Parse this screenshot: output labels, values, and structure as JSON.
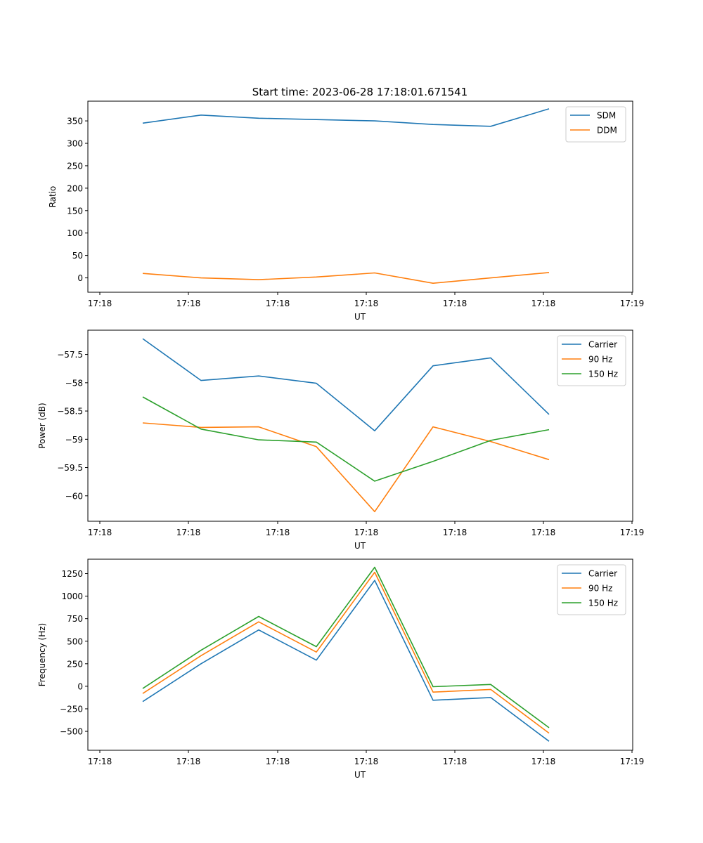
{
  "figure": {
    "title": "Start time: 2023-06-28 17:18:01.671541"
  },
  "chart_data": [
    {
      "type": "line",
      "title": "Start time: 2023-06-28 17:18:01.671541",
      "xlabel": "UT",
      "ylabel": "Ratio",
      "x_tick_labels": [
        "17:18",
        "17:18",
        "17:18",
        "17:18",
        "17:18",
        "17:18",
        "17:19"
      ],
      "y_ticks": [
        0,
        50,
        100,
        150,
        200,
        250,
        300,
        350
      ],
      "ylim": [
        -32,
        394
      ],
      "legend_position": "top-right",
      "grid": false,
      "series": [
        {
          "name": "SDM",
          "color": "#1f77b4",
          "values": [
            345,
            363,
            356,
            353,
            350,
            342,
            338,
            377
          ]
        },
        {
          "name": "DDM",
          "color": "#ff7f0e",
          "values": [
            10,
            0,
            -4,
            2,
            11,
            -12,
            0,
            12
          ]
        }
      ]
    },
    {
      "type": "line",
      "title": "",
      "xlabel": "UT",
      "ylabel": "Power (dB)",
      "x_tick_labels": [
        "17:18",
        "17:18",
        "17:18",
        "17:18",
        "17:18",
        "17:18",
        "17:19"
      ],
      "y_ticks": [
        -57.5,
        -58.0,
        -58.5,
        -59.0,
        -59.5,
        -60.0
      ],
      "ylim": [
        -60.45,
        -57.07
      ],
      "legend_position": "top-right",
      "grid": false,
      "series": [
        {
          "name": "Carrier",
          "color": "#1f77b4",
          "values": [
            -57.22,
            -57.96,
            -57.88,
            -58.01,
            -58.85,
            -57.7,
            -57.56,
            -58.56
          ]
        },
        {
          "name": "90 Hz",
          "color": "#ff7f0e",
          "values": [
            -58.71,
            -58.79,
            -58.78,
            -59.13,
            -60.28,
            -58.78,
            -59.04,
            -59.36
          ]
        },
        {
          "name": "150 Hz",
          "color": "#2ca02c",
          "values": [
            -58.25,
            -58.82,
            -59.01,
            -59.05,
            -59.74,
            -59.39,
            -59.02,
            -58.83
          ]
        }
      ]
    },
    {
      "type": "line",
      "title": "",
      "xlabel": "UT",
      "ylabel": "Frequency (Hz)",
      "x_tick_labels": [
        "17:18",
        "17:18",
        "17:18",
        "17:18",
        "17:18",
        "17:18",
        "17:19"
      ],
      "y_ticks": [
        -500,
        -250,
        0,
        250,
        500,
        750,
        1000,
        1250
      ],
      "ylim": [
        -710,
        1410
      ],
      "legend_position": "top-right",
      "grid": false,
      "series": [
        {
          "name": "Carrier",
          "color": "#1f77b4",
          "values": [
            -170,
            250,
            625,
            290,
            1175,
            -155,
            -125,
            -610
          ]
        },
        {
          "name": "90 Hz",
          "color": "#ff7f0e",
          "values": [
            -80,
            340,
            715,
            380,
            1265,
            -65,
            -35,
            -520
          ]
        },
        {
          "name": "150 Hz",
          "color": "#2ca02c",
          "values": [
            -25,
            400,
            775,
            440,
            1320,
            -5,
            20,
            -460
          ]
        }
      ]
    }
  ]
}
